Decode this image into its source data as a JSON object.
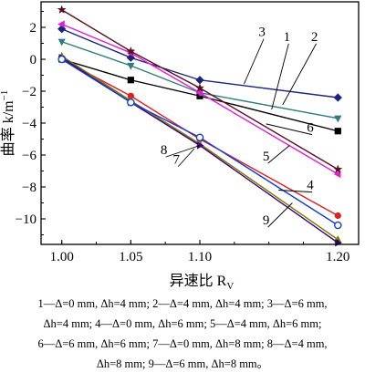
{
  "chart_data": {
    "type": "line",
    "x": [
      1.0,
      1.05,
      1.1,
      1.2
    ],
    "xticks": [
      "1.00",
      "1.05",
      "1.10",
      "1.20"
    ],
    "yticks": [
      "2",
      "0",
      "−2",
      "−4",
      "−6",
      "−8",
      "−10"
    ],
    "xlim": [
      0.985,
      1.215
    ],
    "ylim": [
      -11.6,
      3.6
    ],
    "xlabel": "异速比 R",
    "xlabel_sub": "V",
    "ylabel": "曲率 k/m",
    "ylabel_sup": "−1",
    "grid": false,
    "series": [
      {
        "name": "1",
        "color": "#000000",
        "marker": "square",
        "values": [
          0.0,
          -1.3,
          -2.3,
          -4.5
        ]
      },
      {
        "name": "2",
        "color": "#2e7d7d",
        "marker": "triangle-down",
        "values": [
          1.1,
          -0.4,
          -2.1,
          -3.7
        ]
      },
      {
        "name": "3",
        "color": "#1a237e",
        "marker": "diamond",
        "values": [
          1.9,
          0.1,
          -1.3,
          -2.4
        ]
      },
      {
        "name": "4",
        "color": "#e02020",
        "marker": "circle",
        "values": [
          0.0,
          -2.3,
          -5.0,
          -9.8
        ]
      },
      {
        "name": "5",
        "color": "#e51cd6",
        "marker": "triangle-left",
        "values": [
          2.2,
          0.4,
          -2.1,
          -7.2
        ]
      },
      {
        "name": "6",
        "color": "#5a0f1e",
        "marker": "star",
        "values": [
          3.1,
          0.5,
          -1.8,
          -6.9
        ]
      },
      {
        "name": "7",
        "color": "#7a7a00",
        "marker": "triangle-up",
        "values": [
          0.2,
          -2.6,
          -5.3,
          -11.3
        ]
      },
      {
        "name": "8",
        "color": "#3a0080",
        "marker": "triangle-right",
        "values": [
          0.1,
          -2.7,
          -5.4,
          -11.5
        ]
      },
      {
        "name": "9",
        "color": "#1440d0",
        "marker": "circle-open",
        "values": [
          0.0,
          -2.7,
          -4.9,
          -10.4
        ]
      }
    ],
    "annotations": [
      {
        "text": "3",
        "series": "3",
        "at": [
          1.145,
          1.45
        ],
        "tip": [
          1.132,
          -1.55
        ]
      },
      {
        "text": "1",
        "series": "1",
        "at": [
          1.163,
          1.15
        ],
        "tip": [
          1.152,
          -3.15
        ]
      },
      {
        "text": "2",
        "series": "2",
        "at": [
          1.183,
          1.15
        ],
        "tip": [
          1.16,
          -2.85
        ]
      },
      {
        "text": "6",
        "series": "6",
        "at": [
          1.18,
          -4.55
        ],
        "tip": [
          1.148,
          -4.05
        ]
      },
      {
        "text": "5",
        "series": "5",
        "at": [
          1.148,
          -6.35
        ],
        "tip": [
          1.165,
          -5.4
        ]
      },
      {
        "text": "4",
        "series": "4",
        "at": [
          1.18,
          -8.15
        ],
        "tip": [
          1.157,
          -8.2
        ]
      },
      {
        "text": "8",
        "series": "8",
        "at": [
          1.074,
          -5.95
        ],
        "tip": [
          1.1,
          -5.4
        ]
      },
      {
        "text": "7",
        "series": "7",
        "at": [
          1.083,
          -6.55
        ],
        "tip": [
          1.096,
          -5.6
        ]
      },
      {
        "text": "9",
        "series": "9",
        "at": [
          1.148,
          -10.35
        ],
        "tip": [
          1.167,
          -9.0
        ]
      }
    ]
  },
  "caption": [
    "1—Δ=0 mm, Δh=4 mm; 2—Δ=4 mm, Δh=4 mm; 3—Δ=6 mm,",
    "Δh=4 mm; 4—Δ=0 mm, Δh=6 mm; 5—Δ=4 mm, Δh=6 mm;",
    "6—Δ=6 mm, Δh=6 mm; 7—Δ=0 mm, Δh=8 mm; 8—Δ=4 mm,",
    "Δh=8 mm; 9—Δ=6 mm, Δh=8 mm。"
  ]
}
